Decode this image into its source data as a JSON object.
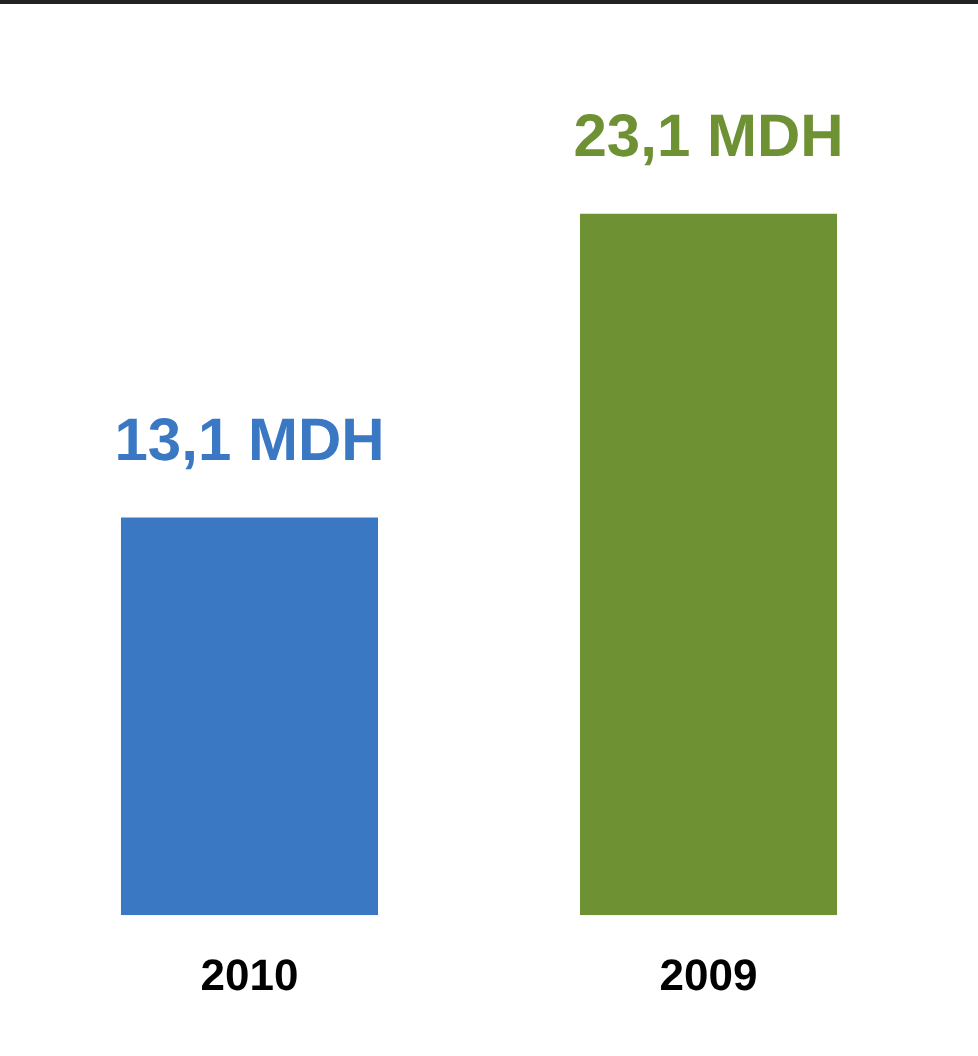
{
  "chart_data": {
    "type": "bar",
    "categories": [
      "2010",
      "2009"
    ],
    "values": [
      13.1,
      23.1
    ],
    "colors": [
      "#3a78c4",
      "#6e9233"
    ],
    "value_labels": [
      "13,1 MDH",
      "23,1 MDH"
    ],
    "grid": false,
    "legend": false
  }
}
